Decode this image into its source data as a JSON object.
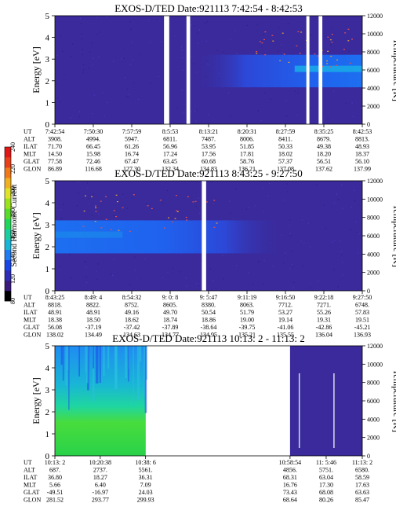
{
  "colors": {
    "background_spectrogram": "#3a2a9c",
    "colorbar": [
      "#000000",
      "#3a1a7a",
      "#2d2db8",
      "#1846e6",
      "#1f7cf2",
      "#19b5d6",
      "#19cfa0",
      "#1fd65a",
      "#57dc2a",
      "#9be21c",
      "#e0e426",
      "#f0b020",
      "#f07a1a",
      "#e8401a",
      "#e01818"
    ]
  },
  "colorbar": {
    "label": "Second Harmonic Current",
    "ticks": [
      "80",
      "120",
      "140",
      "160",
      "180",
      "200",
      "220",
      "240"
    ]
  },
  "chart_data": [
    {
      "type": "heatmap",
      "title": "EXOS-D/TED   Date:921113   7:42:54 - 8:42:53",
      "ylabel": "Energy [eV]",
      "ylim": [
        0,
        5
      ],
      "yticks": [
        "0",
        "1",
        "2",
        "3",
        "4",
        "5"
      ],
      "y2label": "Temperature [K]",
      "y2lim": [
        0,
        12000
      ],
      "y2ticks": [
        "0",
        "2000",
        "4000",
        "6000",
        "8000",
        "10000",
        "12000"
      ],
      "row_labels": [
        "UT",
        "ALT",
        "ILAT",
        "MLT",
        "GLAT",
        "GLON"
      ],
      "columns": [
        [
          "7:42:54",
          "3908.",
          "71.70",
          "14.50",
          "77.58",
          "86.89"
        ],
        [
          "7:50:30",
          "4994.",
          "66.45",
          "15.98",
          "72.46",
          "116.68"
        ],
        [
          "7:57:59",
          "5947.",
          "61.26",
          "16.74",
          "67.47",
          "127.30"
        ],
        [
          "8:5:53",
          "6811.",
          "56.96",
          "17.24",
          "63.45",
          "132.34"
        ],
        [
          "8:13:21",
          "7487.",
          "53.95",
          "17.56",
          "60.68",
          "134.83"
        ],
        [
          "8:20:31",
          "8006.",
          "51.85",
          "17.81",
          "58.76",
          "136.21"
        ],
        [
          "8:27:59",
          "8411.",
          "50.33",
          "18.02",
          "57.37",
          "137.08"
        ],
        [
          "8:35:25",
          "8679.",
          "49.38",
          "18.20",
          "56.51",
          "137.62"
        ],
        [
          "8:42:53",
          "8813.",
          "48.93",
          "18.37",
          "56.10",
          "137.99"
        ]
      ],
      "gaps": [
        [
          0.355,
          0.372
        ],
        [
          0.428,
          0.44
        ],
        [
          0.818,
          0.828
        ],
        [
          0.858,
          0.87
        ]
      ]
    },
    {
      "type": "heatmap",
      "title": "EXOS-D/TED   Date:921113   8:43:25 - 9:27:50",
      "ylabel": "Energy [eV]",
      "ylim": [
        0,
        5
      ],
      "yticks": [
        "0",
        "1",
        "2",
        "3",
        "4",
        "5"
      ],
      "y2label": "Temperature [K]",
      "y2lim": [
        0,
        12000
      ],
      "y2ticks": [
        "0",
        "2000",
        "4000",
        "6000",
        "8000",
        "10000",
        "12000"
      ],
      "row_labels": [
        "UT",
        "ALT",
        "ILAT",
        "MLT",
        "GLAT",
        "GLON"
      ],
      "columns": [
        [
          "8:43:25",
          "8818.",
          "48.91",
          "18.38",
          "56.08",
          "138.02"
        ],
        [
          "8:49: 4",
          "8822.",
          "48.91",
          "18.50",
          "-37.19",
          "134.49"
        ],
        [
          "8:54:32",
          "8752.",
          "49.16",
          "18.62",
          "-37.42",
          "134.63"
        ],
        [
          "9: 0: 8",
          "8605.",
          "49.70",
          "18.74",
          "-37.89",
          "134.77"
        ],
        [
          "9: 5:47",
          "8380.",
          "50.54",
          "18.86",
          "-38.64",
          "134.95"
        ],
        [
          "9:11:19",
          "8063.",
          "51.79",
          "19.00",
          "-39.75",
          "135.21"
        ],
        [
          "9:16:50",
          "7712.",
          "53.27",
          "19.14",
          "-41.06",
          "135.55"
        ],
        [
          "9:22:18",
          "7271.",
          "55.26",
          "19.31",
          "-42.86",
          "136.04"
        ],
        [
          "9:27:50",
          "6748.",
          "57.83",
          "19.51",
          "-45.21",
          "136.93"
        ]
      ],
      "gaps": [
        [
          0.478,
          0.492
        ]
      ]
    },
    {
      "type": "heatmap",
      "title": "EXOS-D/TED   Date:921113   10:13: 2 - 11:13: 2",
      "ylabel": "Energy [eV]",
      "ylim": [
        0,
        5
      ],
      "yticks": [
        "0",
        "1",
        "2",
        "3",
        "4",
        "5"
      ],
      "y2label": "Temperature [K]",
      "y2lim": [
        0,
        12000
      ],
      "y2ticks": [
        "0",
        "2000",
        "4000",
        "6000",
        "8000",
        "10000",
        "12000"
      ],
      "row_labels": [
        "UT",
        "ALT",
        "ILAT",
        "MLT",
        "GLAT",
        "GLON"
      ],
      "columns": [
        [
          "10:13: 2",
          "687.",
          "36.80",
          "5.66",
          "-49.51",
          "281.52"
        ],
        [
          "10:20:38",
          "2737.",
          "18.27",
          "6.40",
          "-16.97",
          "293.77"
        ],
        [
          "10:38: 6",
          "5561.",
          "36.31",
          "7.09",
          "24.03",
          "299.93"
        ],
        [
          "10:58:54",
          "4856.",
          "68.31",
          "16.76",
          "73.43",
          "68.64"
        ],
        [
          "11: 5:46",
          "5751.",
          "63.04",
          "17.30",
          "68.08",
          "80.26"
        ],
        [
          "11:13: 2",
          "6580.",
          "58.59",
          "17.63",
          "63.63",
          "85.47"
        ]
      ],
      "data_ranges": [
        [
          0.0,
          0.295
        ],
        [
          0.765,
          1.0
        ]
      ]
    }
  ]
}
